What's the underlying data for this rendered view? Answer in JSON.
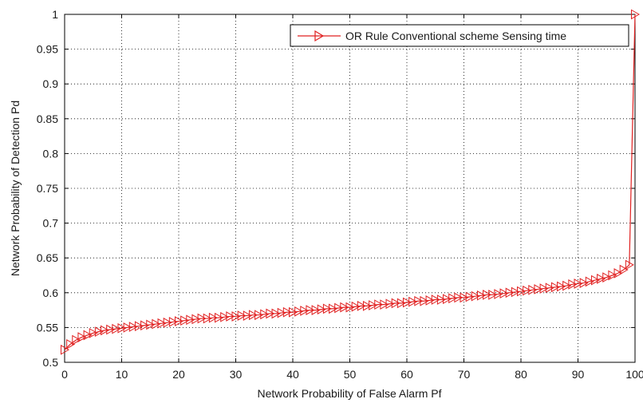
{
  "chart_data": {
    "type": "line",
    "title": "",
    "xlabel": "Network Probability of False Alarm Pf",
    "ylabel": "Network Probability of Detection Pd",
    "xlim": [
      0,
      100
    ],
    "ylim": [
      0.5,
      1.0
    ],
    "x_ticks": [
      0,
      10,
      20,
      30,
      40,
      50,
      60,
      70,
      80,
      90,
      100
    ],
    "y_ticks": [
      0.5,
      0.55,
      0.6,
      0.65,
      0.7,
      0.75,
      0.8,
      0.85,
      0.9,
      0.95,
      1.0
    ],
    "x_tick_labels": [
      "0",
      "10",
      "20",
      "30",
      "40",
      "50",
      "60",
      "70",
      "80",
      "90",
      "100"
    ],
    "y_tick_labels": [
      "0.5",
      "0.55",
      "0.6",
      "0.65",
      "0.7",
      "0.75",
      "0.8",
      "0.85",
      "0.9",
      "0.95",
      "1"
    ],
    "grid": true,
    "legend_position": "top-right",
    "series": [
      {
        "name": "OR Rule Conventional scheme Sensing time",
        "color": "#e02020",
        "marker": "triangle-right",
        "x": [
          0,
          1,
          2,
          3,
          4,
          5,
          6,
          7,
          8,
          9,
          10,
          11,
          12,
          13,
          14,
          15,
          16,
          17,
          18,
          19,
          20,
          21,
          22,
          23,
          24,
          25,
          26,
          27,
          28,
          29,
          30,
          31,
          32,
          33,
          34,
          35,
          36,
          37,
          38,
          39,
          40,
          41,
          42,
          43,
          44,
          45,
          46,
          47,
          48,
          49,
          50,
          51,
          52,
          53,
          54,
          55,
          56,
          57,
          58,
          59,
          60,
          61,
          62,
          63,
          64,
          65,
          66,
          67,
          68,
          69,
          70,
          71,
          72,
          73,
          74,
          75,
          76,
          77,
          78,
          79,
          80,
          81,
          82,
          83,
          84,
          85,
          86,
          87,
          88,
          89,
          90,
          91,
          92,
          93,
          94,
          95,
          96,
          97,
          98,
          99,
          100
        ],
        "y": [
          0.518,
          0.526,
          0.532,
          0.536,
          0.539,
          0.542,
          0.544,
          0.546,
          0.547,
          0.548,
          0.549,
          0.55,
          0.551,
          0.552,
          0.553,
          0.554,
          0.555,
          0.556,
          0.557,
          0.558,
          0.559,
          0.56,
          0.561,
          0.562,
          0.563,
          0.563,
          0.564,
          0.564,
          0.565,
          0.566,
          0.566,
          0.567,
          0.567,
          0.568,
          0.568,
          0.569,
          0.57,
          0.57,
          0.571,
          0.572,
          0.572,
          0.573,
          0.574,
          0.575,
          0.575,
          0.576,
          0.577,
          0.577,
          0.578,
          0.579,
          0.579,
          0.58,
          0.581,
          0.581,
          0.582,
          0.583,
          0.583,
          0.584,
          0.585,
          0.585,
          0.586,
          0.587,
          0.588,
          0.588,
          0.589,
          0.59,
          0.59,
          0.591,
          0.592,
          0.593,
          0.593,
          0.594,
          0.595,
          0.596,
          0.597,
          0.597,
          0.598,
          0.599,
          0.6,
          0.601,
          0.602,
          0.603,
          0.604,
          0.605,
          0.606,
          0.607,
          0.608,
          0.609,
          0.61,
          0.612,
          0.613,
          0.614,
          0.616,
          0.618,
          0.62,
          0.622,
          0.625,
          0.628,
          0.633,
          0.64,
          1.0
        ]
      }
    ]
  }
}
